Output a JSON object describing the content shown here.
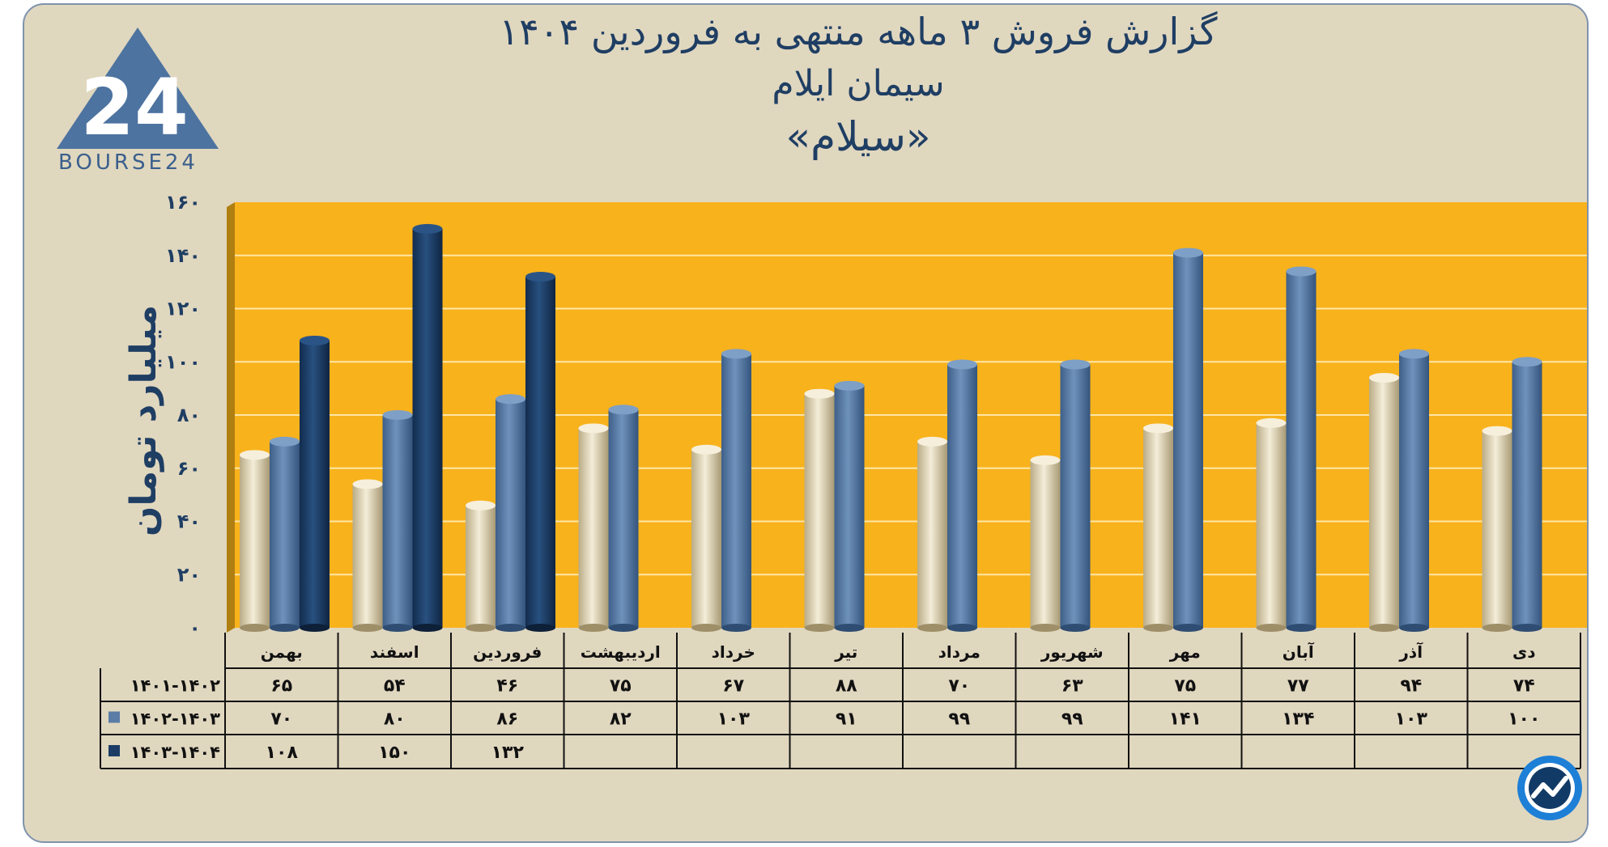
{
  "header": {
    "title_line1": "گزارش  فروش ۳ ماهه منتهی به فروردین ۱۴۰۴",
    "title_line2": "سیمان ایلام",
    "title_line3": "«سیلام»"
  },
  "logo": {
    "text": "BOURSE24",
    "mark_text": "24",
    "icon": "bourse24-logo"
  },
  "badge": {
    "icon": "trend-chart-badge-icon"
  },
  "colors": {
    "background": "#e0d7bf",
    "plot_bg": "#f8b21c",
    "series1": "#e9dfc3",
    "series2": "#5a7ca6",
    "series3": "#1c3c66",
    "text": "#1f3e63"
  },
  "chart_data": {
    "type": "bar",
    "ylabel": "میلیارد تومان",
    "ylim": [
      0,
      160
    ],
    "yticks": [
      0,
      20,
      40,
      60,
      80,
      100,
      120,
      140,
      160
    ],
    "ytick_labels": [
      "۰",
      "۲۰",
      "۴۰",
      "۶۰",
      "۸۰",
      "۱۰۰",
      "۱۲۰",
      "۱۴۰",
      "۱۶۰"
    ],
    "categories": [
      "بهمن",
      "اسفند",
      "فروردین",
      "اردیبهشت",
      "خرداد",
      "تیر",
      "مرداد",
      "شهریور",
      "مهر",
      "آبان",
      "آذر",
      "دی"
    ],
    "series": [
      {
        "name": "۱۴۰۱-۱۴۰۲",
        "values": [
          65,
          54,
          46,
          75,
          67,
          88,
          70,
          63,
          75,
          77,
          94,
          74
        ],
        "labels": [
          "۶۵",
          "۵۴",
          "۴۶",
          "۷۵",
          "۶۷",
          "۸۸",
          "۷۰",
          "۶۳",
          "۷۵",
          "۷۷",
          "۹۴",
          "۷۴"
        ]
      },
      {
        "name": "۱۴۰۲-۱۴۰۳",
        "values": [
          70,
          80,
          86,
          82,
          103,
          91,
          99,
          99,
          141,
          134,
          103,
          100
        ],
        "labels": [
          "۷۰",
          "۸۰",
          "۸۶",
          "۸۲",
          "۱۰۳",
          "۹۱",
          "۹۹",
          "۹۹",
          "۱۴۱",
          "۱۳۴",
          "۱۰۳",
          "۱۰۰"
        ]
      },
      {
        "name": "۱۴۰۳-۱۴۰۴",
        "values": [
          108,
          150,
          132,
          null,
          null,
          null,
          null,
          null,
          null,
          null,
          null,
          null
        ],
        "labels": [
          "۱۰۸",
          "۱۵۰",
          "۱۳۲",
          "",
          "",
          "",
          "",
          "",
          "",
          "",
          "",
          ""
        ]
      }
    ]
  }
}
